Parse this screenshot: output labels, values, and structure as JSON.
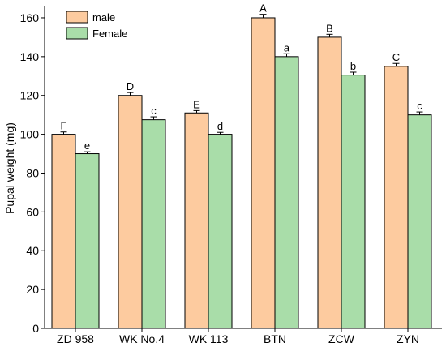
{
  "chart_data": {
    "type": "bar",
    "ylabel": "Pupal weight (mg)",
    "xlabel": "",
    "ylim": [
      0,
      165
    ],
    "yticks": [
      0,
      20,
      40,
      60,
      80,
      100,
      120,
      140,
      160
    ],
    "grid": false,
    "legend_position": "top-left",
    "categories": [
      "ZD 958",
      "WK No.4",
      "WK 113",
      "BTN",
      "ZCW",
      "ZYN"
    ],
    "series": [
      {
        "name": "male",
        "color": "#FDCB9F",
        "values": [
          100,
          120,
          111,
          160,
          150,
          135
        ],
        "errors": [
          1.2,
          1.5,
          1.2,
          1.8,
          1.5,
          1.5
        ],
        "labels": [
          "F",
          "D",
          "E",
          "A",
          "B",
          "C"
        ]
      },
      {
        "name": "Female",
        "color": "#A9DDA9",
        "values": [
          90,
          107.5,
          100,
          140,
          130.5,
          110
        ],
        "errors": [
          1.0,
          1.5,
          1.0,
          1.5,
          1.5,
          1.5
        ],
        "labels": [
          "e",
          "c",
          "d",
          "a",
          "b",
          "c"
        ]
      }
    ]
  }
}
